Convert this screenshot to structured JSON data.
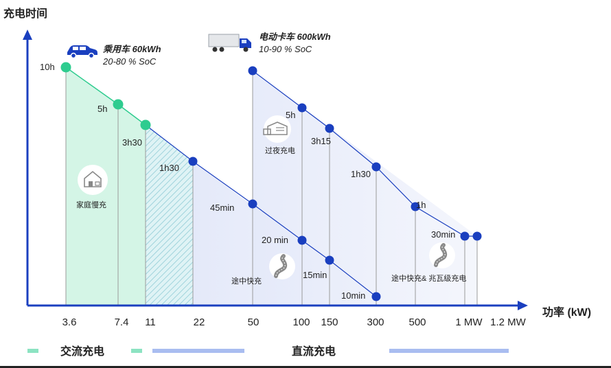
{
  "chart_data": {
    "type": "scatter",
    "ylabel": "充电时间",
    "xlabel": "功率 (kW)",
    "categories": [
      "3.6",
      "7.4",
      "11",
      "22",
      "50",
      "100",
      "150",
      "300",
      "500",
      "1 MW",
      "1.2 MW"
    ],
    "series": [
      {
        "name": "乘用车 60kWh",
        "subtitle": "20-80 % SoC",
        "color": "#2ecc8f",
        "points": [
          {
            "x": "3.6",
            "label": "10h"
          },
          {
            "x": "7.4",
            "label": "5h"
          },
          {
            "x": "11",
            "label": "3h30"
          },
          {
            "x": "22",
            "label": "1h30"
          },
          {
            "x": "50",
            "label": "45min"
          },
          {
            "x": "100",
            "label": "20 min"
          },
          {
            "x": "150",
            "label": "15min"
          },
          {
            "x": "300",
            "label": "10min"
          }
        ]
      },
      {
        "name": "电动卡车 600kWh",
        "subtitle": "10-90 % SoC",
        "color": "#1a3fbf",
        "points": [
          {
            "x": "50",
            "label": ""
          },
          {
            "x": "100",
            "label": "5h"
          },
          {
            "x": "150",
            "label": "3h15"
          },
          {
            "x": "300",
            "label": "1h30"
          },
          {
            "x": "500",
            "label": "1h"
          },
          {
            "x": "1 MW",
            "label": "30min"
          },
          {
            "x": "1.2 MW",
            "label": ""
          }
        ]
      }
    ],
    "annotations": [
      "家庭慢充",
      "过夜充电",
      "途中快充",
      "途中快充& 兆瓦级充电"
    ],
    "legend": [
      {
        "label": "交流充电",
        "color": "#2ecc8f"
      },
      {
        "label": "直流充电",
        "color": "#1a3fbf"
      }
    ],
    "grid": false
  },
  "colors": {
    "ac": "#2ecc8f",
    "dc": "#1a3fbf",
    "axis": "#1a3fbf",
    "ac_fill": "#d4f5e6",
    "dc_fill": "#e6ebfa"
  },
  "icons": [
    "car-icon",
    "truck-icon",
    "house-icon",
    "warehouse-icon",
    "road-icon"
  ]
}
